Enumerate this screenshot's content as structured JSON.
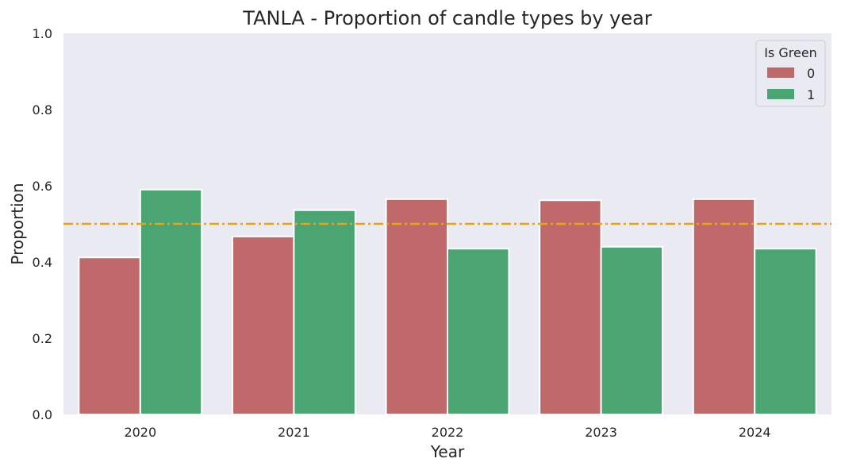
{
  "chart_data": {
    "type": "bar",
    "title": "TANLA - Proportion of candle types by year",
    "xlabel": "Year",
    "ylabel": "Proportion",
    "categories": [
      "2020",
      "2021",
      "2022",
      "2023",
      "2024"
    ],
    "series": [
      {
        "name": "0",
        "color": "#c0696a",
        "values": [
          0.412,
          0.467,
          0.565,
          0.562,
          0.565
        ]
      },
      {
        "name": "1",
        "color": "#4aa573",
        "values": [
          0.59,
          0.536,
          0.435,
          0.44,
          0.435
        ]
      }
    ],
    "ylim": [
      0,
      1.0
    ],
    "yticks": [
      "0.0",
      "0.2",
      "0.4",
      "0.6",
      "0.8",
      "1.0"
    ],
    "reference_line": {
      "y": 0.5,
      "color": "#e8a317",
      "style": "dash-dot"
    },
    "legend": {
      "title": "Is Green",
      "placement": "top-right"
    },
    "grid": false,
    "background": "#eaeaf2"
  }
}
